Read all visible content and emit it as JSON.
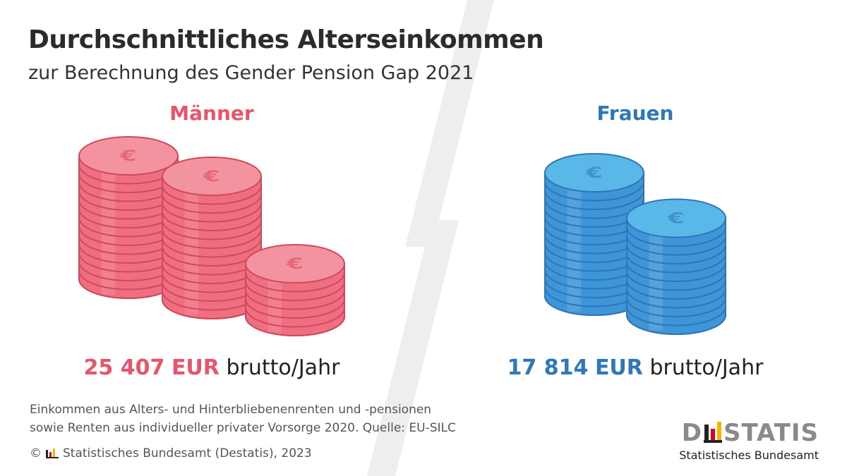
{
  "header": {
    "title": "Durchschnittliches Alterseinkommen",
    "subtitle": "zur Berechnung des Gender Pension Gap 2021"
  },
  "chart_data": {
    "type": "bar",
    "categories": [
      "Männer",
      "Frauen"
    ],
    "values": [
      25407,
      17814
    ],
    "unit": "EUR",
    "unit_suffix": "brutto/Jahr",
    "value_labels": [
      "25 407",
      "17 814"
    ],
    "title": "Durchschnittliches Alterseinkommen",
    "subtitle": "zur Berechnung des Gender Pension Gap 2021"
  },
  "colors": {
    "men": "#e8546a",
    "men_face": "#f2939f",
    "men_side": "#ee6f7f",
    "men_stroke": "#d4475c",
    "women": "#2f78b7",
    "women_face": "#5ab8e8",
    "women_side": "#3e96d8",
    "women_stroke": "#2d76b8",
    "bolt": "#eeeeee"
  },
  "icons": {
    "coin": "euro-coin-icon",
    "logo_mark": "destatis-mark-icon"
  },
  "footer": {
    "note_line1": "Einkommen aus Alters- und Hinterbliebenenrenten und -pensionen",
    "note_line2": "sowie Renten aus individueller privater Vorsorge 2020. Quelle: EU-SILC",
    "copyright_symbol": "©",
    "copyright_text": "Statistisches Bundesamt (Destatis), 2023"
  },
  "logo": {
    "wordmark_start": "D",
    "wordmark_end": "STATIS",
    "tagline": "Statistisches Bundesamt"
  }
}
